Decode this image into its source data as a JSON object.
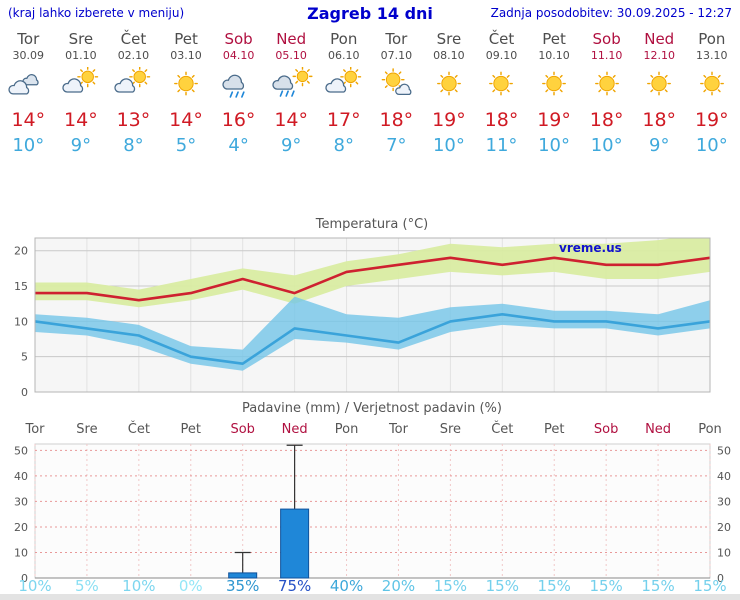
{
  "header": {
    "left_note": "(kraj lahko izberete v meniju)",
    "title": "Zagreb 14 dni",
    "updated": "Zadnja posodobitev: 30.09.2025 - 12:27"
  },
  "colors": {
    "header_text": "#0000cc",
    "weekday_text": "#4d4d4d",
    "weekend_text": "#b01040",
    "tmax_text": "#d01a24",
    "tmin_text": "#3fa9dc",
    "chart_title_text": "#555555"
  },
  "days": [
    {
      "name": "Tor",
      "date": "30.09",
      "icon": "cloudy",
      "tmax": "14°",
      "tmin": "10°",
      "weekend": false
    },
    {
      "name": "Sre",
      "date": "01.10",
      "icon": "partly",
      "tmax": "14°",
      "tmin": "9°",
      "weekend": false
    },
    {
      "name": "Čet",
      "date": "02.10",
      "icon": "partly",
      "tmax": "13°",
      "tmin": "8°",
      "weekend": false
    },
    {
      "name": "Pet",
      "date": "03.10",
      "icon": "sunny",
      "tmax": "14°",
      "tmin": "5°",
      "weekend": false
    },
    {
      "name": "Sob",
      "date": "04.10",
      "icon": "rain",
      "tmax": "16°",
      "tmin": "4°",
      "weekend": true
    },
    {
      "name": "Ned",
      "date": "05.10",
      "icon": "rain-sun",
      "tmax": "14°",
      "tmin": "9°",
      "weekend": true
    },
    {
      "name": "Pon",
      "date": "06.10",
      "icon": "partly",
      "tmax": "17°",
      "tmin": "8°",
      "weekend": false
    },
    {
      "name": "Tor",
      "date": "07.10",
      "icon": "mostly-sunny",
      "tmax": "18°",
      "tmin": "7°",
      "weekend": false
    },
    {
      "name": "Sre",
      "date": "08.10",
      "icon": "sunny",
      "tmax": "19°",
      "tmin": "10°",
      "weekend": false
    },
    {
      "name": "Čet",
      "date": "09.10",
      "icon": "sunny",
      "tmax": "18°",
      "tmin": "11°",
      "weekend": false
    },
    {
      "name": "Pet",
      "date": "10.10",
      "icon": "sunny",
      "tmax": "19°",
      "tmin": "10°",
      "weekend": false
    },
    {
      "name": "Sob",
      "date": "11.10",
      "icon": "sunny",
      "tmax": "18°",
      "tmin": "10°",
      "weekend": true
    },
    {
      "name": "Ned",
      "date": "12.10",
      "icon": "sunny",
      "tmax": "18°",
      "tmin": "9°",
      "weekend": true
    },
    {
      "name": "Pon",
      "date": "13.10",
      "icon": "sunny",
      "tmax": "19°",
      "tmin": "10°",
      "weekend": false
    }
  ],
  "chart_data": [
    {
      "type": "line",
      "title": "Temperatura (°C)",
      "categories": [
        "Tor",
        "Sre",
        "Čet",
        "Pet",
        "Sob",
        "Ned",
        "Pon",
        "Tor",
        "Sre",
        "Čet",
        "Pet",
        "Sob",
        "Ned",
        "Pon"
      ],
      "series": [
        {
          "name": "max-temp",
          "color": "#ce2130",
          "values": [
            14,
            14,
            13,
            14,
            16,
            14,
            17,
            18,
            19,
            18,
            19,
            18,
            18,
            19
          ]
        },
        {
          "name": "min-temp",
          "color": "#3aa3da",
          "values": [
            10,
            9,
            8,
            5,
            4,
            9,
            8,
            7,
            10,
            11,
            10,
            10,
            9,
            10
          ]
        }
      ],
      "bands": [
        {
          "name": "max-range",
          "color": "#d9eca2",
          "opacity": 0.95,
          "upper": [
            15.5,
            15.5,
            14.5,
            16,
            17.5,
            16.5,
            18.5,
            19.5,
            21,
            20.5,
            21,
            21,
            21.5,
            22.5
          ],
          "lower": [
            13,
            13,
            12,
            13,
            14.5,
            12.5,
            15,
            16,
            17,
            16.5,
            17,
            16,
            16,
            17
          ]
        },
        {
          "name": "min-range",
          "color": "#74c6e8",
          "opacity": 0.8,
          "upper": [
            11,
            10.5,
            9.5,
            6.5,
            6,
            13.5,
            11,
            10.5,
            12,
            12.5,
            11.5,
            11.5,
            11,
            13
          ],
          "lower": [
            8.5,
            8,
            6.5,
            4,
            3,
            7.5,
            7,
            6,
            8.5,
            9.5,
            9,
            9,
            8,
            9
          ]
        }
      ],
      "ylim": [
        0,
        21.8
      ],
      "yticks": [
        0,
        5,
        10,
        15,
        20
      ],
      "grid": true,
      "legend_position": "none",
      "watermark": "vreme.us",
      "watermark_color": "#1111cc"
    },
    {
      "type": "bar",
      "title": "Padavine (mm) / Verjetnost padavin (%)",
      "categories": [
        "Tor",
        "Sre",
        "Čet",
        "Pet",
        "Sob",
        "Ned",
        "Pon",
        "Tor",
        "Sre",
        "Čet",
        "Pet",
        "Sob",
        "Ned",
        "Pon"
      ],
      "values_mm": [
        0,
        0,
        0,
        0,
        2,
        27,
        0,
        0,
        0,
        0,
        0,
        0,
        0,
        0
      ],
      "whisker_max_mm": [
        0,
        0,
        0,
        0,
        10,
        52,
        0,
        0,
        0,
        0,
        0,
        0,
        0,
        0
      ],
      "probability_pct": [
        10,
        5,
        10,
        0,
        35,
        75,
        40,
        20,
        15,
        15,
        15,
        15,
        15,
        15
      ],
      "probability_colors": [
        "#7dd6ef",
        "#8adff3",
        "#7dd6ef",
        "#93e6f7",
        "#2e96d0",
        "#2551c6",
        "#3da8da",
        "#5fc4e6",
        "#74d0ec",
        "#74d0ec",
        "#74d0ec",
        "#74d0ec",
        "#74d0ec",
        "#74d0ec"
      ],
      "bar_color": "#1f87d8",
      "bar_border": "#10529b",
      "ylim": [
        0,
        52.5
      ],
      "yticks": [
        0,
        10,
        20,
        30,
        40,
        50
      ],
      "grid": true,
      "legend_position": "none"
    }
  ]
}
